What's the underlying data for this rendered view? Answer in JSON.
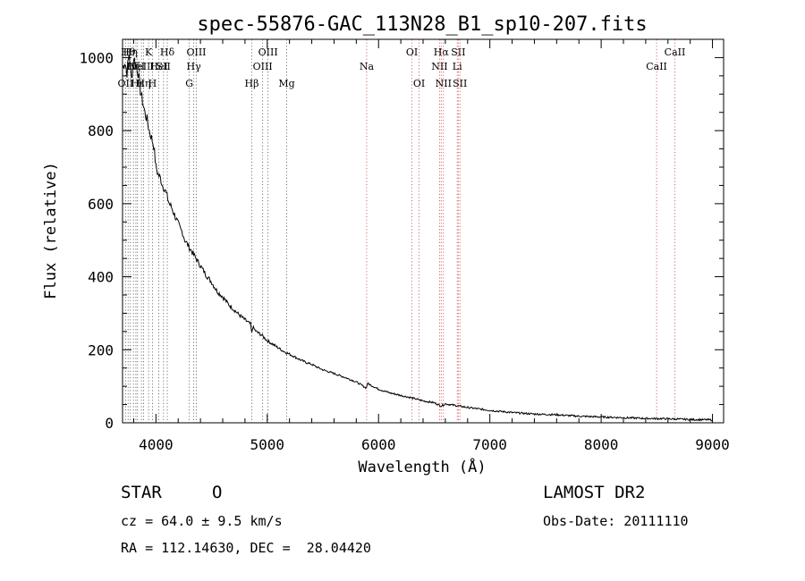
{
  "chart_data": {
    "type": "line",
    "title": "spec-55876-GAC_113N28_B1_sp10-207.fits",
    "xlabel": "Wavelength (Å)",
    "ylabel": "Flux (relative)",
    "xlim": [
      3700,
      9100
    ],
    "ylim": [
      0,
      1050
    ],
    "x_ticks": [
      4000,
      5000,
      6000,
      7000,
      8000,
      9000
    ],
    "x_tick_labels": [
      "4000",
      "5000",
      "6000",
      "7000",
      "8000",
      "9000"
    ],
    "y_ticks": [
      0,
      200,
      400,
      600,
      800,
      1000
    ],
    "y_tick_labels": [
      "0",
      "200",
      "400",
      "600",
      "800",
      "1000"
    ],
    "grid": false,
    "series": [
      {
        "name": "",
        "x": [
          3700,
          3720,
          3740,
          3760,
          3780,
          3800,
          3820,
          3840,
          3860,
          3880,
          3900,
          3920,
          3940,
          3960,
          3980,
          4000,
          4020,
          4040,
          4060,
          4080,
          4100,
          4120,
          4140,
          4160,
          4180,
          4200,
          4220,
          4240,
          4260,
          4280,
          4300,
          4320,
          4340,
          4360,
          4380,
          4400,
          4450,
          4500,
          4550,
          4600,
          4650,
          4700,
          4750,
          4800,
          4850,
          4861,
          4870,
          4900,
          4950,
          5000,
          5050,
          5100,
          5150,
          5200,
          5250,
          5300,
          5350,
          5400,
          5450,
          5500,
          5600,
          5700,
          5800,
          5890,
          5900,
          6000,
          6100,
          6200,
          6300,
          6400,
          6500,
          6563,
          6600,
          6700,
          6800,
          6900,
          7000,
          7200,
          7400,
          7600,
          7800,
          8000,
          8200,
          8400,
          8600,
          8800,
          9000
        ],
        "values": [
          970,
          990,
          960,
          1010,
          940,
          1000,
          980,
          960,
          910,
          880,
          850,
          830,
          800,
          780,
          760,
          700,
          680,
          670,
          650,
          640,
          620,
          600,
          590,
          575,
          560,
          545,
          530,
          520,
          500,
          490,
          480,
          470,
          460,
          450,
          440,
          430,
          405,
          385,
          360,
          345,
          325,
          310,
          295,
          282,
          270,
          245,
          262,
          250,
          240,
          225,
          215,
          205,
          195,
          188,
          180,
          172,
          165,
          160,
          152,
          145,
          135,
          124,
          112,
          95,
          108,
          92,
          82,
          75,
          68,
          60,
          55,
          46,
          52,
          47,
          42,
          38,
          34,
          28,
          24,
          22,
          18,
          16,
          14,
          12,
          11,
          9,
          8
        ]
      }
    ],
    "line_markers": [
      {
        "x": 3727,
        "label": "OII",
        "row": 3
      },
      {
        "x": 3750,
        "label": "Hθ",
        "row": 1
      },
      {
        "x": 3770,
        "label": "Hη",
        "row": 1
      },
      {
        "x": 3798,
        "label": "Hζ",
        "row": 2
      },
      {
        "x": 3820,
        "label": "HeI",
        "row": 2
      },
      {
        "x": 3835,
        "label": "Hε",
        "row": 3
      },
      {
        "x": 3870,
        "label": "NeIII",
        "row": 2
      },
      {
        "x": 3889,
        "label": "Hη",
        "row": 3
      },
      {
        "x": 3934,
        "label": "K",
        "row": 1
      },
      {
        "x": 3969,
        "label": "H",
        "row": 3
      },
      {
        "x": 4026,
        "label": "HeI",
        "row": 2
      },
      {
        "x": 4068,
        "label": "SII",
        "row": 2
      },
      {
        "x": 4102,
        "label": "Hδ",
        "row": 1
      },
      {
        "x": 4300,
        "label": "G",
        "row": 3
      },
      {
        "x": 4340,
        "label": "Hγ",
        "row": 2
      },
      {
        "x": 4363,
        "label": "OIII",
        "row": 1
      },
      {
        "x": 4861,
        "label": "Hβ",
        "row": 3
      },
      {
        "x": 4959,
        "label": "OIII",
        "row": 2
      },
      {
        "x": 5007,
        "label": "OIII",
        "row": 1
      },
      {
        "x": 5175,
        "label": "Mg",
        "row": 3
      },
      {
        "x": 5893,
        "label": "Na",
        "row": 2
      },
      {
        "x": 6300,
        "label": "OI",
        "row": 1
      },
      {
        "x": 6364,
        "label": "OI",
        "row": 3
      },
      {
        "x": 6548,
        "label": "NII",
        "row": 2
      },
      {
        "x": 6563,
        "label": "Hα",
        "row": 1
      },
      {
        "x": 6583,
        "label": "NII",
        "row": 3
      },
      {
        "x": 6716,
        "label": "SII",
        "row": 1
      },
      {
        "x": 6707,
        "label": "Li",
        "row": 2
      },
      {
        "x": 6731,
        "label": "SII",
        "row": 3
      },
      {
        "x": 8498,
        "label": "CaII",
        "row": 2
      },
      {
        "x": 8662,
        "label": "CaII",
        "row": 1
      }
    ]
  },
  "info": {
    "class_label": "STAR",
    "subclass_label": "O",
    "survey_label": "LAMOST DR2",
    "cz_label": "cz = 64.0 ± 9.5 km/s",
    "obs_date_label": "Obs-Date: 20111110",
    "coords_label": "RA = 112.14630, DEC =  28.04420"
  }
}
